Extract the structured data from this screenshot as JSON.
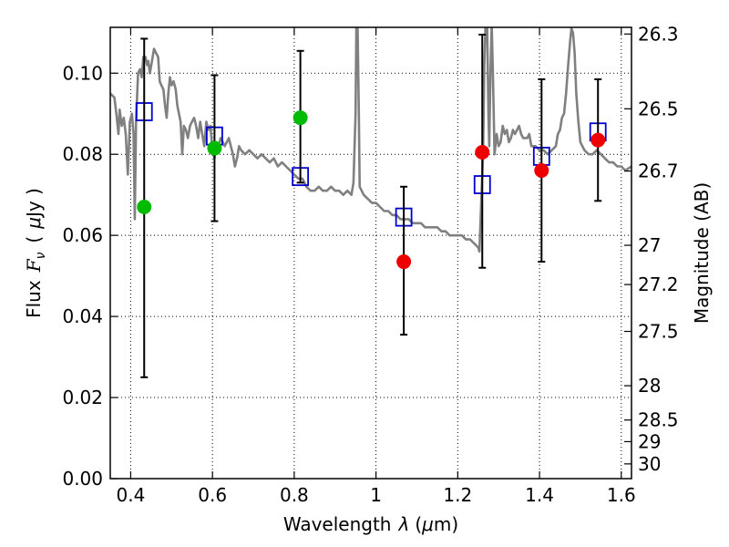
{
  "chart_data": {
    "type": "scatter",
    "xlabel_text": "Wavelength",
    "xlabel_symbol": "λ",
    "xlabel_unit_open": "(",
    "xlabel_unit_mu": "μ",
    "xlabel_unit_rest": "m)",
    "ylabel_text": "Flux",
    "ylabel_symbol_F": "F",
    "ylabel_symbol_nu": "ν",
    "ylabel_unit_open": "(",
    "ylabel_unit_mu": "μ",
    "ylabel_unit_rest": "Jy )",
    "y2label": "Magnitude (AB)",
    "xlim": [
      0.35,
      1.625
    ],
    "ylim": [
      0.0,
      0.1113
    ],
    "grid": true,
    "x_ticks": [
      0.4,
      0.6,
      0.8,
      1.0,
      1.2,
      1.4,
      1.6
    ],
    "x_tick_labels": [
      "0.4",
      "0.6",
      "0.8",
      "1",
      "1.2",
      "1.4",
      "1.6"
    ],
    "y_ticks": [
      0.0,
      0.02,
      0.04,
      0.06,
      0.08,
      0.1
    ],
    "y_tick_labels": [
      "0.00",
      "0.02",
      "0.04",
      "0.06",
      "0.08",
      "0.10"
    ],
    "y2_ticks": [
      26.3,
      26.5,
      26.7,
      27,
      27.2,
      27.5,
      28,
      28.5,
      29,
      30
    ],
    "y2_tick_labels": [
      "26.3",
      "26.5",
      "26.7",
      "27",
      "27.2",
      "27.5",
      "28",
      "28.5",
      "29",
      "30"
    ],
    "series": [
      {
        "type": "line",
        "color": "#808080",
        "points": [
          [
            0.35,
            0.095
          ],
          [
            0.36,
            0.094
          ],
          [
            0.365,
            0.09
          ],
          [
            0.37,
            0.085
          ],
          [
            0.373,
            0.091
          ],
          [
            0.378,
            0.087
          ],
          [
            0.383,
            0.089
          ],
          [
            0.388,
            0.085
          ],
          [
            0.393,
            0.075
          ],
          [
            0.398,
            0.088
          ],
          [
            0.403,
            0.09
          ],
          [
            0.407,
            0.085
          ],
          [
            0.41,
            0.064
          ],
          [
            0.413,
            0.088
          ],
          [
            0.418,
            0.1
          ],
          [
            0.423,
            0.101
          ],
          [
            0.427,
            0.099
          ],
          [
            0.431,
            0.104
          ],
          [
            0.436,
            0.104
          ],
          [
            0.44,
            0.102
          ],
          [
            0.443,
            0.103
          ],
          [
            0.447,
            0.1
          ],
          [
            0.452,
            0.103
          ],
          [
            0.457,
            0.106
          ],
          [
            0.462,
            0.105
          ],
          [
            0.467,
            0.104
          ],
          [
            0.471,
            0.098
          ],
          [
            0.475,
            0.097
          ],
          [
            0.48,
            0.096
          ],
          [
            0.484,
            0.092
          ],
          [
            0.488,
            0.089
          ],
          [
            0.492,
            0.095
          ],
          [
            0.496,
            0.099
          ],
          [
            0.5,
            0.097
          ],
          [
            0.505,
            0.098
          ],
          [
            0.51,
            0.096
          ],
          [
            0.514,
            0.092
          ],
          [
            0.518,
            0.09
          ],
          [
            0.522,
            0.088
          ],
          [
            0.526,
            0.08
          ],
          [
            0.53,
            0.087
          ],
          [
            0.535,
            0.086
          ],
          [
            0.54,
            0.084
          ],
          [
            0.545,
            0.087
          ],
          [
            0.55,
            0.088
          ],
          [
            0.555,
            0.089
          ],
          [
            0.56,
            0.087
          ],
          [
            0.565,
            0.084
          ],
          [
            0.57,
            0.088
          ],
          [
            0.575,
            0.085
          ],
          [
            0.58,
            0.082
          ],
          [
            0.585,
            0.088
          ],
          [
            0.59,
            0.086
          ],
          [
            0.595,
            0.087
          ],
          [
            0.6,
            0.081
          ],
          [
            0.605,
            0.079
          ],
          [
            0.61,
            0.083
          ],
          [
            0.615,
            0.082
          ],
          [
            0.62,
            0.084
          ],
          [
            0.625,
            0.083
          ],
          [
            0.63,
            0.082
          ],
          [
            0.635,
            0.083
          ],
          [
            0.64,
            0.084
          ],
          [
            0.645,
            0.082
          ],
          [
            0.65,
            0.08
          ],
          [
            0.655,
            0.077
          ],
          [
            0.66,
            0.079
          ],
          [
            0.665,
            0.082
          ],
          [
            0.67,
            0.081
          ],
          [
            0.68,
            0.08
          ],
          [
            0.69,
            0.081
          ],
          [
            0.7,
            0.08
          ],
          [
            0.71,
            0.079
          ],
          [
            0.72,
            0.08
          ],
          [
            0.73,
            0.079
          ],
          [
            0.74,
            0.078
          ],
          [
            0.75,
            0.079
          ],
          [
            0.76,
            0.077
          ],
          [
            0.77,
            0.078
          ],
          [
            0.78,
            0.077
          ],
          [
            0.79,
            0.076
          ],
          [
            0.8,
            0.075
          ],
          [
            0.81,
            0.074
          ],
          [
            0.82,
            0.074
          ],
          [
            0.83,
            0.072
          ],
          [
            0.84,
            0.071
          ],
          [
            0.85,
            0.071
          ],
          [
            0.86,
            0.072
          ],
          [
            0.87,
            0.071
          ],
          [
            0.88,
            0.071
          ],
          [
            0.89,
            0.072
          ],
          [
            0.9,
            0.071
          ],
          [
            0.91,
            0.071
          ],
          [
            0.92,
            0.07
          ],
          [
            0.93,
            0.071
          ],
          [
            0.94,
            0.07
          ],
          [
            0.945,
            0.073
          ],
          [
            0.95,
            0.09
          ],
          [
            0.952,
            0.112
          ],
          [
            0.955,
            0.112
          ],
          [
            0.958,
            0.09
          ],
          [
            0.96,
            0.072
          ],
          [
            0.965,
            0.071
          ],
          [
            0.97,
            0.07
          ],
          [
            0.98,
            0.069
          ],
          [
            0.99,
            0.068
          ],
          [
            1.0,
            0.068
          ],
          [
            1.01,
            0.067
          ],
          [
            1.02,
            0.066
          ],
          [
            1.03,
            0.066
          ],
          [
            1.04,
            0.065
          ],
          [
            1.05,
            0.065
          ],
          [
            1.06,
            0.064
          ],
          [
            1.07,
            0.064
          ],
          [
            1.08,
            0.064
          ],
          [
            1.09,
            0.063
          ],
          [
            1.1,
            0.063
          ],
          [
            1.11,
            0.063
          ],
          [
            1.12,
            0.062
          ],
          [
            1.13,
            0.062
          ],
          [
            1.14,
            0.062
          ],
          [
            1.15,
            0.062
          ],
          [
            1.16,
            0.061
          ],
          [
            1.17,
            0.061
          ],
          [
            1.18,
            0.06
          ],
          [
            1.19,
            0.06
          ],
          [
            1.2,
            0.06
          ],
          [
            1.21,
            0.06
          ],
          [
            1.22,
            0.059
          ],
          [
            1.23,
            0.059
          ],
          [
            1.24,
            0.058
          ],
          [
            1.25,
            0.057
          ],
          [
            1.253,
            0.056
          ],
          [
            1.258,
            0.07
          ],
          [
            1.262,
            0.08
          ],
          [
            1.265,
            0.102
          ],
          [
            1.268,
            0.112
          ],
          [
            1.272,
            0.112
          ],
          [
            1.275,
            0.09
          ],
          [
            1.277,
            0.082
          ],
          [
            1.28,
            0.1
          ],
          [
            1.283,
            0.112
          ],
          [
            1.286,
            0.1
          ],
          [
            1.29,
            0.08
          ],
          [
            1.295,
            0.085
          ],
          [
            1.3,
            0.082
          ],
          [
            1.305,
            0.083
          ],
          [
            1.31,
            0.087
          ],
          [
            1.315,
            0.085
          ],
          [
            1.32,
            0.086
          ],
          [
            1.325,
            0.083
          ],
          [
            1.33,
            0.084
          ],
          [
            1.335,
            0.086
          ],
          [
            1.34,
            0.085
          ],
          [
            1.345,
            0.086
          ],
          [
            1.35,
            0.087
          ],
          [
            1.355,
            0.085
          ],
          [
            1.36,
            0.084
          ],
          [
            1.37,
            0.084
          ],
          [
            1.375,
            0.085
          ],
          [
            1.38,
            0.082
          ],
          [
            1.39,
            0.082
          ],
          [
            1.4,
            0.081
          ],
          [
            1.41,
            0.081
          ],
          [
            1.42,
            0.08
          ],
          [
            1.43,
            0.081
          ],
          [
            1.44,
            0.082
          ],
          [
            1.445,
            0.085
          ],
          [
            1.45,
            0.086
          ],
          [
            1.455,
            0.089
          ],
          [
            1.46,
            0.09
          ],
          [
            1.465,
            0.095
          ],
          [
            1.47,
            0.102
          ],
          [
            1.475,
            0.108
          ],
          [
            1.478,
            0.111
          ],
          [
            1.482,
            0.11
          ],
          [
            1.486,
            0.105
          ],
          [
            1.49,
            0.095
          ],
          [
            1.495,
            0.088
          ],
          [
            1.5,
            0.083
          ],
          [
            1.51,
            0.081
          ],
          [
            1.52,
            0.08
          ],
          [
            1.53,
            0.08
          ],
          [
            1.54,
            0.081
          ],
          [
            1.55,
            0.08
          ],
          [
            1.56,
            0.079
          ],
          [
            1.57,
            0.078
          ],
          [
            1.58,
            0.078
          ],
          [
            1.59,
            0.077
          ],
          [
            1.6,
            0.077
          ],
          [
            1.61,
            0.076
          ],
          [
            1.625,
            0.077
          ]
        ]
      },
      {
        "type": "open-square",
        "color": "#0000cc",
        "x": [
          0.433,
          0.605,
          0.815,
          1.068,
          1.26,
          1.405,
          1.543
        ],
        "y": [
          0.0905,
          0.0845,
          0.0745,
          0.0645,
          0.0725,
          0.0795,
          0.0855
        ]
      },
      {
        "type": "dot",
        "color": "#00bb00",
        "x": [
          0.433,
          0.605,
          0.815
        ],
        "y": [
          0.067,
          0.0815,
          0.089
        ]
      },
      {
        "type": "dot",
        "color": "#ee0000",
        "x": [
          1.068,
          1.26,
          1.405,
          1.543
        ],
        "y": [
          0.0535,
          0.0805,
          0.076,
          0.0835
        ]
      },
      {
        "type": "errorbar",
        "color": "#000000",
        "x": [
          0.433,
          0.605,
          0.815,
          1.068,
          1.26,
          1.405,
          1.543
        ],
        "ylow": [
          0.025,
          0.0635,
          0.073,
          0.0355,
          0.052,
          0.0535,
          0.0685
        ],
        "yhigh": [
          0.1085,
          0.0995,
          0.1055,
          0.072,
          0.1095,
          0.0985,
          0.0985
        ]
      }
    ]
  }
}
